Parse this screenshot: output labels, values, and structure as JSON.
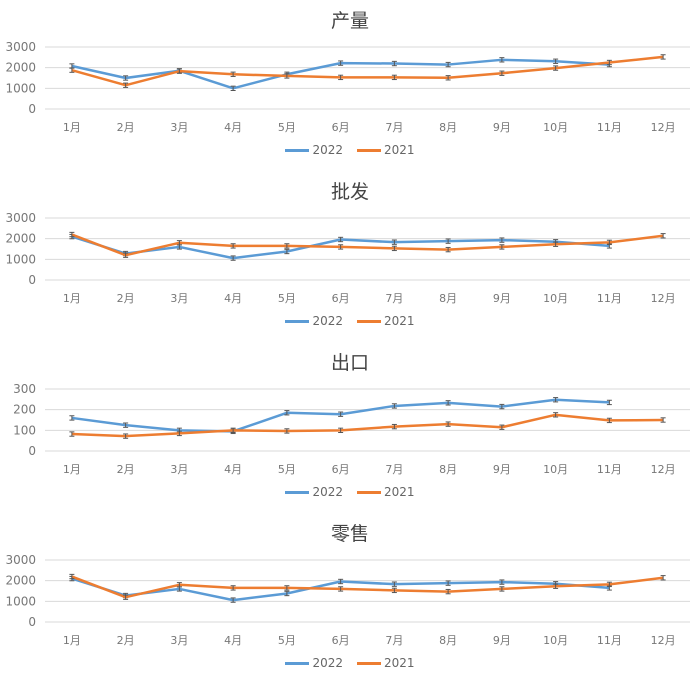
{
  "chart_data": [
    {
      "type": "line",
      "title": "产量",
      "categories": [
        "1月",
        "2月",
        "3月",
        "4月",
        "5月",
        "6月",
        "7月",
        "8月",
        "9月",
        "10月",
        "11月",
        "12月"
      ],
      "yticks": [
        0,
        1000,
        2000,
        3000
      ],
      "ylim": [
        0,
        3000
      ],
      "grid": true,
      "legend": "bottom",
      "error_bars": true,
      "series": [
        {
          "name": "2022",
          "color": "#5b9bd5",
          "values": [
            2080,
            1500,
            1850,
            1000,
            1680,
            2220,
            2200,
            2150,
            2380,
            2310,
            2150,
            null
          ]
        },
        {
          "name": "2021",
          "color": "#ed7d31",
          "values": [
            1880,
            1150,
            1830,
            1680,
            1600,
            1530,
            1530,
            1510,
            1730,
            1980,
            2250,
            2520
          ]
        }
      ]
    },
    {
      "type": "line",
      "title": "批发",
      "categories": [
        "1月",
        "2月",
        "3月",
        "4月",
        "5月",
        "6月",
        "7月",
        "8月",
        "9月",
        "10月",
        "11月",
        "12月"
      ],
      "yticks": [
        0,
        1000,
        2000,
        3000
      ],
      "ylim": [
        0,
        3000
      ],
      "grid": true,
      "legend": "bottom",
      "error_bars": true,
      "series": [
        {
          "name": "2022",
          "color": "#5b9bd5",
          "values": [
            2100,
            1280,
            1600,
            1060,
            1380,
            1960,
            1830,
            1880,
            1930,
            1850,
            1650,
            null
          ]
        },
        {
          "name": "2021",
          "color": "#ed7d31",
          "values": [
            2200,
            1200,
            1800,
            1650,
            1650,
            1600,
            1530,
            1470,
            1600,
            1730,
            1820,
            2140
          ]
        }
      ]
    },
    {
      "type": "line",
      "title": "出口",
      "categories": [
        "1月",
        "2月",
        "3月",
        "4月",
        "5月",
        "6月",
        "7月",
        "8月",
        "9月",
        "10月",
        "11月",
        "12月"
      ],
      "yticks": [
        0,
        100,
        200,
        300
      ],
      "ylim": [
        0,
        300
      ],
      "grid": true,
      "legend": "bottom",
      "error_bars": true,
      "series": [
        {
          "name": "2022",
          "color": "#5b9bd5",
          "values": [
            160,
            125,
            100,
            95,
            185,
            178,
            218,
            233,
            215,
            248,
            235,
            null
          ]
        },
        {
          "name": "2021",
          "color": "#ed7d31",
          "values": [
            82,
            72,
            85,
            100,
            97,
            100,
            118,
            130,
            115,
            175,
            148,
            150
          ]
        }
      ]
    },
    {
      "type": "line",
      "title": "零售",
      "categories": [
        "1月",
        "2月",
        "3月",
        "4月",
        "5月",
        "6月",
        "7月",
        "8月",
        "9月",
        "10月",
        "11月",
        "12月"
      ],
      "yticks": [
        0,
        1000,
        2000,
        3000
      ],
      "ylim": [
        0,
        3000
      ],
      "grid": true,
      "legend": "bottom",
      "error_bars": true,
      "series": [
        {
          "name": "2022",
          "color": "#5b9bd5",
          "values": [
            2100,
            1280,
            1600,
            1060,
            1380,
            1960,
            1830,
            1880,
            1930,
            1850,
            1650,
            null
          ]
        },
        {
          "name": "2021",
          "color": "#ed7d31",
          "values": [
            2200,
            1200,
            1800,
            1650,
            1650,
            1600,
            1530,
            1470,
            1600,
            1730,
            1820,
            2140
          ]
        }
      ]
    }
  ]
}
